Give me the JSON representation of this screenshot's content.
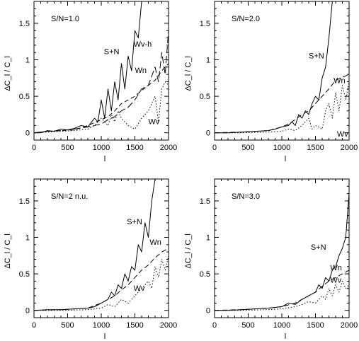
{
  "chart_data": [
    {
      "type": "line",
      "annotation": "S/N=1.0",
      "xlabel": "l",
      "ylabel": "ΔC_l / C_l",
      "xlim": [
        0,
        2000
      ],
      "ylim": [
        -0.1,
        1.8
      ],
      "xticks": [
        0,
        500,
        1000,
        1500,
        2000
      ],
      "yticks": [
        0,
        0.5,
        1,
        1.5
      ],
      "xtick_labels": [
        "0",
        "500",
        "1000",
        "1500",
        "2000"
      ],
      "ytick_labels": [
        "0",
        "0.5",
        "1",
        "1.5"
      ],
      "grid": false,
      "series": [
        {
          "name": "S+N",
          "style": "solid",
          "label_at": [
            1040,
            1.08
          ],
          "x": [
            0,
            100,
            200,
            300,
            400,
            500,
            600,
            700,
            800,
            900,
            950,
            1000,
            1050,
            1100,
            1150,
            1200,
            1250,
            1300,
            1350,
            1400,
            1450,
            1500,
            1550,
            1600,
            1650
          ],
          "y": [
            0,
            0,
            0.03,
            0.02,
            0.05,
            0.04,
            0.06,
            0.1,
            0.08,
            0.2,
            0.15,
            0.45,
            0.2,
            0.6,
            0.3,
            0.7,
            0.45,
            0.95,
            0.6,
            1.05,
            0.85,
            1.4,
            1.3,
            1.8,
            1.8
          ]
        },
        {
          "name": "Wv-h",
          "style": "longdash",
          "label_at": [
            1480,
            1.18
          ],
          "x": [
            0,
            200,
            400,
            600,
            800,
            1000,
            1100,
            1200,
            1300,
            1400,
            1500,
            1600,
            1700,
            1800,
            1850,
            1900,
            1950,
            2000
          ],
          "y": [
            0,
            0.02,
            0.03,
            0.05,
            0.08,
            0.12,
            0.18,
            0.22,
            0.3,
            0.35,
            0.45,
            0.6,
            0.65,
            0.9,
            0.7,
            1.1,
            0.8,
            1.4
          ]
        },
        {
          "name": "Wn",
          "style": "shortdash",
          "label_at": [
            1500,
            0.82
          ],
          "x": [
            0,
            200,
            400,
            600,
            800,
            1000,
            1100,
            1200,
            1300,
            1400,
            1500,
            1600,
            1700,
            1800,
            1900,
            2000
          ],
          "y": [
            0,
            0.02,
            0.03,
            0.04,
            0.1,
            0.18,
            0.22,
            0.3,
            0.4,
            0.45,
            0.5,
            0.58,
            0.65,
            0.72,
            0.85,
            0.95
          ]
        },
        {
          "name": "Wv",
          "style": "dotted",
          "label_at": [
            1700,
            0.12
          ],
          "x": [
            0,
            200,
            400,
            600,
            800,
            900,
            1000,
            1100,
            1150,
            1200,
            1250,
            1300,
            1400,
            1500,
            1600,
            1700,
            1800,
            1850,
            1900,
            1950,
            2000
          ],
          "y": [
            0,
            0.01,
            0.02,
            0.03,
            0.05,
            0.1,
            0.2,
            0.1,
            0.25,
            0.15,
            0.3,
            0.2,
            0.1,
            0.05,
            0.2,
            0.3,
            0.5,
            0.15,
            0.6,
            0.7,
            0.65
          ]
        }
      ]
    },
    {
      "type": "line",
      "annotation": "S/N=2.0",
      "xlabel": "l",
      "ylabel": "ΔC_l / C_l",
      "xlim": [
        0,
        2000
      ],
      "ylim": [
        -0.1,
        1.8
      ],
      "xticks": [
        0,
        500,
        1000,
        1500,
        2000
      ],
      "yticks": [
        0,
        0.5,
        1,
        1.5
      ],
      "xtick_labels": [
        "0",
        "500",
        "1000",
        "1500",
        "2000"
      ],
      "ytick_labels": [
        "0",
        "0.5",
        "1",
        "1.5"
      ],
      "grid": false,
      "series": [
        {
          "name": "S+N",
          "style": "solid",
          "label_at": [
            1400,
            1.02
          ],
          "x": [
            0,
            200,
            400,
            600,
            800,
            900,
            1000,
            1100,
            1150,
            1200,
            1250,
            1300,
            1350,
            1400,
            1450,
            1500,
            1550,
            1600,
            1650,
            1700,
            1750
          ],
          "y": [
            0,
            0,
            0.01,
            0.02,
            0.03,
            0.05,
            0.08,
            0.1,
            0.15,
            0.1,
            0.25,
            0.2,
            0.3,
            0.25,
            0.4,
            0.5,
            0.45,
            0.75,
            0.9,
            1.3,
            1.8
          ]
        },
        {
          "name": "Wn",
          "style": "dashed",
          "label_at": [
            1770,
            0.68
          ],
          "x": [
            0,
            400,
            800,
            1000,
            1100,
            1200,
            1300,
            1400,
            1500,
            1600,
            1700,
            1800,
            1900,
            2000
          ],
          "y": [
            0,
            0.01,
            0.03,
            0.08,
            0.12,
            0.18,
            0.25,
            0.3,
            0.4,
            0.5,
            0.6,
            0.72,
            0.76,
            0.8
          ]
        },
        {
          "name": "Wv",
          "style": "dotted",
          "label_at": [
            1820,
            -0.05
          ],
          "x": [
            0,
            400,
            800,
            1000,
            1100,
            1200,
            1300,
            1400,
            1450,
            1500,
            1600,
            1650,
            1700,
            1750,
            1800,
            1850,
            1900,
            1950,
            2000
          ],
          "y": [
            0,
            0,
            0.01,
            0.02,
            0.05,
            0.03,
            0.1,
            0.2,
            0.05,
            0.1,
            0.05,
            0.3,
            0.4,
            0.2,
            0.55,
            0.3,
            0.65,
            0.45,
            0.7
          ]
        }
      ]
    },
    {
      "type": "line",
      "annotation": "S/N=2 n.u.",
      "xlabel": "l",
      "ylabel": "ΔC_l / C_l",
      "xlim": [
        0,
        2000
      ],
      "ylim": [
        -0.1,
        1.8
      ],
      "xticks": [
        0,
        500,
        1000,
        1500,
        2000
      ],
      "yticks": [
        0,
        0.5,
        1,
        1.5
      ],
      "xtick_labels": [
        "0",
        "500",
        "1000",
        "1500",
        "2000"
      ],
      "ytick_labels": [
        "0",
        "0.5",
        "1",
        "1.5"
      ],
      "grid": false,
      "series": [
        {
          "name": "S+N",
          "style": "solid",
          "label_at": [
            1380,
            1.18
          ],
          "x": [
            0,
            200,
            400,
            600,
            800,
            900,
            1000,
            1100,
            1150,
            1200,
            1250,
            1300,
            1350,
            1400,
            1450,
            1500,
            1550,
            1600,
            1650,
            1700,
            1750,
            1800
          ],
          "y": [
            0,
            0.01,
            0.01,
            0.02,
            0.03,
            0.05,
            0.1,
            0.15,
            0.25,
            0.2,
            0.35,
            0.3,
            0.5,
            0.4,
            0.6,
            0.55,
            0.9,
            0.8,
            1.2,
            1.0,
            1.5,
            1.8
          ]
        },
        {
          "name": "Wn",
          "style": "dashed",
          "label_at": [
            1720,
            0.9
          ],
          "x": [
            0,
            400,
            800,
            1000,
            1100,
            1200,
            1300,
            1400,
            1500,
            1600,
            1700,
            1800,
            1900,
            2000
          ],
          "y": [
            0,
            0.01,
            0.03,
            0.1,
            0.15,
            0.2,
            0.28,
            0.35,
            0.45,
            0.55,
            0.62,
            0.72,
            0.8,
            0.85
          ]
        },
        {
          "name": "Wv",
          "style": "dotted",
          "label_at": [
            1480,
            0.27
          ],
          "x": [
            0,
            400,
            800,
            1000,
            1100,
            1200,
            1300,
            1400,
            1500,
            1600,
            1700,
            1750,
            1800,
            1850,
            1900,
            1950,
            2000
          ],
          "y": [
            0,
            0,
            0.01,
            0.03,
            0.08,
            0.05,
            0.15,
            0.1,
            0.2,
            0.3,
            0.4,
            0.3,
            0.6,
            0.45,
            0.7,
            0.55,
            0.75
          ]
        }
      ]
    },
    {
      "type": "line",
      "annotation": "S/N=3.0",
      "xlabel": "l",
      "ylabel": "ΔC_l / C_l",
      "xlim": [
        0,
        2000
      ],
      "ylim": [
        -0.1,
        1.8
      ],
      "xticks": [
        0,
        500,
        1000,
        1500,
        2000
      ],
      "yticks": [
        0,
        0.5,
        1,
        1.5
      ],
      "xtick_labels": [
        "0",
        "500",
        "1000",
        "1500",
        "2000"
      ],
      "ytick_labels": [
        "0",
        "0.5",
        "1",
        "1.5"
      ],
      "grid": false,
      "series": [
        {
          "name": "S+N",
          "style": "solid",
          "label_at": [
            1430,
            0.83
          ],
          "x": [
            0,
            200,
            400,
            600,
            800,
            1000,
            1100,
            1200,
            1300,
            1400,
            1500,
            1550,
            1600,
            1650,
            1700,
            1750,
            1800,
            1850,
            1900,
            1950,
            2000
          ],
          "y": [
            0,
            0,
            0.01,
            0.02,
            0.03,
            0.05,
            0.1,
            0.08,
            0.15,
            0.2,
            0.25,
            0.35,
            0.3,
            0.45,
            0.4,
            0.55,
            0.6,
            0.75,
            0.85,
            1.0,
            1.6
          ]
        },
        {
          "name": "Wn",
          "style": "dashed",
          "label_at": [
            1720,
            0.55
          ],
          "x": [
            0,
            400,
            800,
            1000,
            1200,
            1300,
            1400,
            1500,
            1600,
            1700,
            1800,
            1900,
            2000
          ],
          "y": [
            0,
            0.01,
            0.03,
            0.05,
            0.1,
            0.15,
            0.2,
            0.25,
            0.33,
            0.4,
            0.45,
            0.5,
            0.55
          ]
        },
        {
          "name": "Wv",
          "style": "dotted",
          "label_at": [
            1720,
            0.38
          ],
          "x": [
            0,
            400,
            800,
            1000,
            1200,
            1300,
            1400,
            1500,
            1600,
            1650,
            1700,
            1750,
            1800,
            1850,
            1900,
            1950,
            2000
          ],
          "y": [
            0,
            0,
            0.01,
            0.02,
            0.05,
            0.08,
            0.12,
            0.1,
            0.2,
            0.15,
            0.3,
            0.2,
            0.35,
            0.25,
            0.4,
            0.3,
            0.35
          ]
        }
      ]
    }
  ]
}
